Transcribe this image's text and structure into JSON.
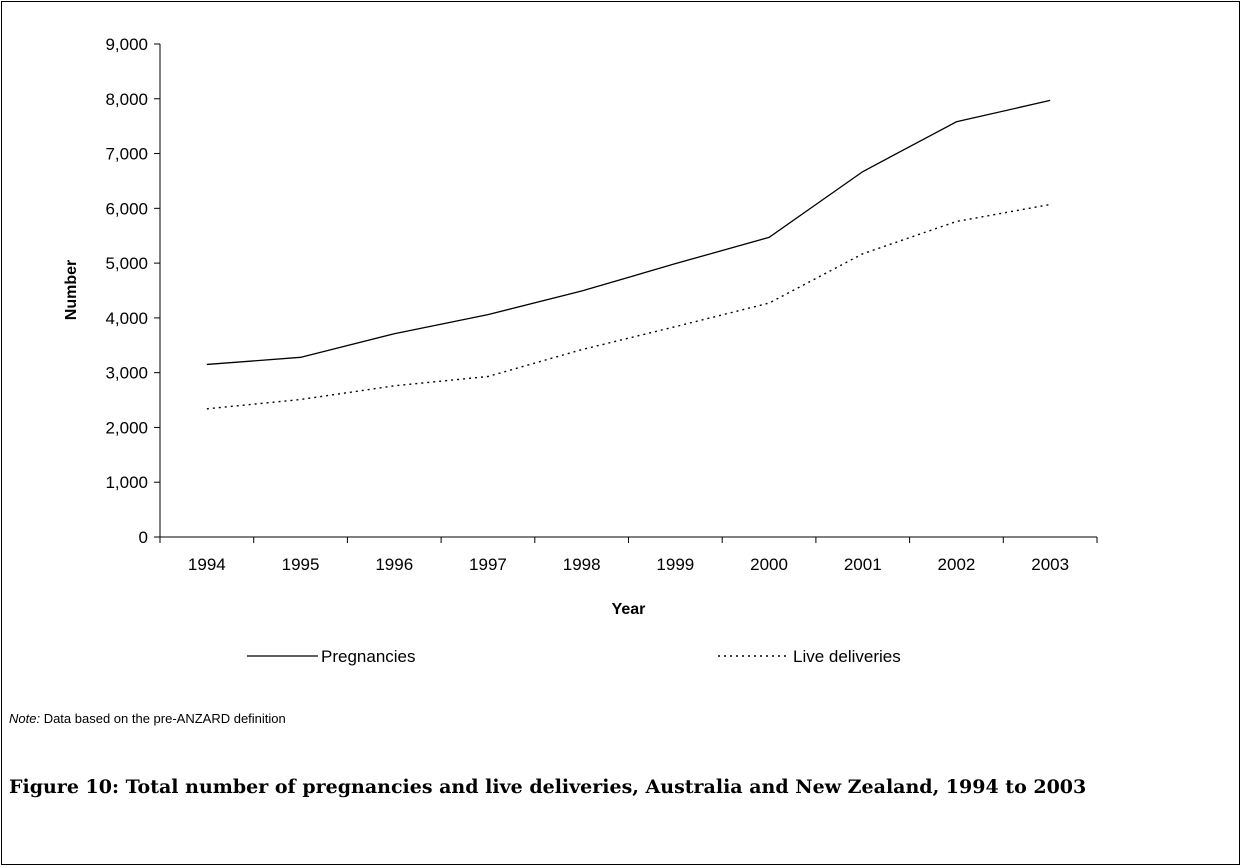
{
  "chart_data": {
    "type": "line",
    "title": "",
    "xlabel": "Year",
    "ylabel": "Number",
    "categories": [
      "1994",
      "1995",
      "1996",
      "1997",
      "1998",
      "1999",
      "2000",
      "2001",
      "2002",
      "2003"
    ],
    "series": [
      {
        "name": "Pregnancies",
        "style": "solid",
        "values": [
          3150,
          3280,
          3710,
          4060,
          4490,
          4990,
          5470,
          6670,
          7580,
          7970
        ]
      },
      {
        "name": "Live deliveries",
        "style": "dotted",
        "values": [
          2340,
          2510,
          2760,
          2930,
          3420,
          3840,
          4270,
          5170,
          5760,
          6070
        ]
      }
    ],
    "ylim": [
      0,
      9000
    ],
    "yticks": [
      0,
      1000,
      2000,
      3000,
      4000,
      5000,
      6000,
      7000,
      8000,
      9000
    ],
    "ytick_labels": [
      "0",
      "1,000",
      "2,000",
      "3,000",
      "4,000",
      "5,000",
      "6,000",
      "7,000",
      "8,000",
      "9,000"
    ],
    "grid": false,
    "legend_position": "bottom"
  },
  "note": {
    "label": "Note:",
    "text": " Data based on the pre-ANZARD definition"
  },
  "caption": "Figure 10: Total number of pregnancies and live deliveries, Australia and New Zealand, 1994 to 2003"
}
